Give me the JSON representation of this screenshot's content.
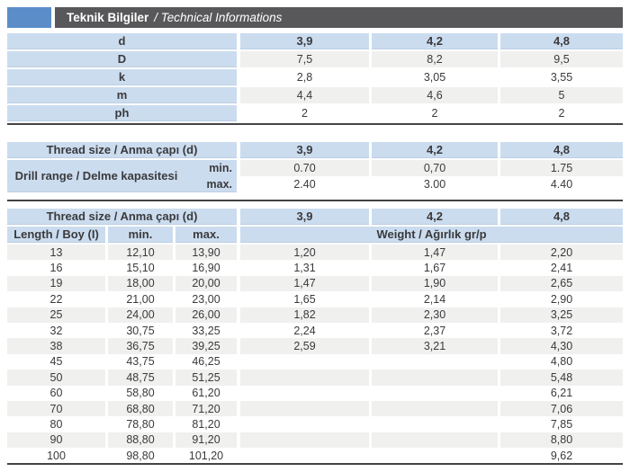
{
  "header": {
    "title_tr": "Teknik Bilgiler",
    "title_en": "/ Technical Informations"
  },
  "colors": {
    "accent_blue": "#5b8dc8",
    "bar_dark": "#58585a",
    "cell_blue": "#cbdcef",
    "row_alt_gray": "#f0f0ef",
    "text": "#3a3a3c"
  },
  "table1": {
    "rows": [
      {
        "label": "d",
        "values": [
          "3,9",
          "4,2",
          "4,8"
        ]
      },
      {
        "label": "D",
        "values": [
          "7,5",
          "8,2",
          "9,5"
        ]
      },
      {
        "label": "k",
        "values": [
          "2,8",
          "3,05",
          "3,55"
        ]
      },
      {
        "label": "m",
        "values": [
          "4,4",
          "4,6",
          "5"
        ]
      },
      {
        "label": "ph",
        "values": [
          "2",
          "2",
          "2"
        ]
      }
    ]
  },
  "table2": {
    "header_label": "Thread size / Anma çapı (d)",
    "sizes": [
      "3,9",
      "4,2",
      "4,8"
    ],
    "row_label": "Drill range / Delme kapasitesi",
    "min_label": "min.",
    "max_label": "max.",
    "min_values": [
      "0.70",
      "0,70",
      "1.75"
    ],
    "max_values": [
      "2.40",
      "3.00",
      "4.40"
    ]
  },
  "table3": {
    "header_label": "Thread size / Anma çapı (d)",
    "sizes": [
      "3,9",
      "4,2",
      "4,8"
    ],
    "length_label": "Length / Boy (I)",
    "min_label": "min.",
    "max_label": "max.",
    "weight_label": "Weight / Ağırlık gr/p",
    "rows": [
      [
        "13",
        "12,10",
        "13,90",
        "1,20",
        "1,47",
        "2,20"
      ],
      [
        "16",
        "15,10",
        "16,90",
        "1,31",
        "1,67",
        "2,41"
      ],
      [
        "19",
        "18,00",
        "20,00",
        "1,47",
        "1,90",
        "2,65"
      ],
      [
        "22",
        "21,00",
        "23,00",
        "1,65",
        "2,14",
        "2,90"
      ],
      [
        "25",
        "24,00",
        "26,00",
        "1,82",
        "2,30",
        "3,25"
      ],
      [
        "32",
        "30,75",
        "33,25",
        "2,24",
        "2,37",
        "3,72"
      ],
      [
        "38",
        "36,75",
        "39,25",
        "2,59",
        "3,21",
        "4,30"
      ],
      [
        "45",
        "43,75",
        "46,25",
        "",
        "",
        "4,80"
      ],
      [
        "50",
        "48,75",
        "51,25",
        "",
        "",
        "5,48"
      ],
      [
        "60",
        "58,80",
        "61,20",
        "",
        "",
        "6,21"
      ],
      [
        "70",
        "68,80",
        "71,20",
        "",
        "",
        "7,06"
      ],
      [
        "80",
        "78,80",
        "81,20",
        "",
        "",
        "7,85"
      ],
      [
        "90",
        "88,80",
        "91,20",
        "",
        "",
        "8,80"
      ],
      [
        "100",
        "98,80",
        "101,20",
        "",
        "",
        "9,62"
      ]
    ]
  }
}
